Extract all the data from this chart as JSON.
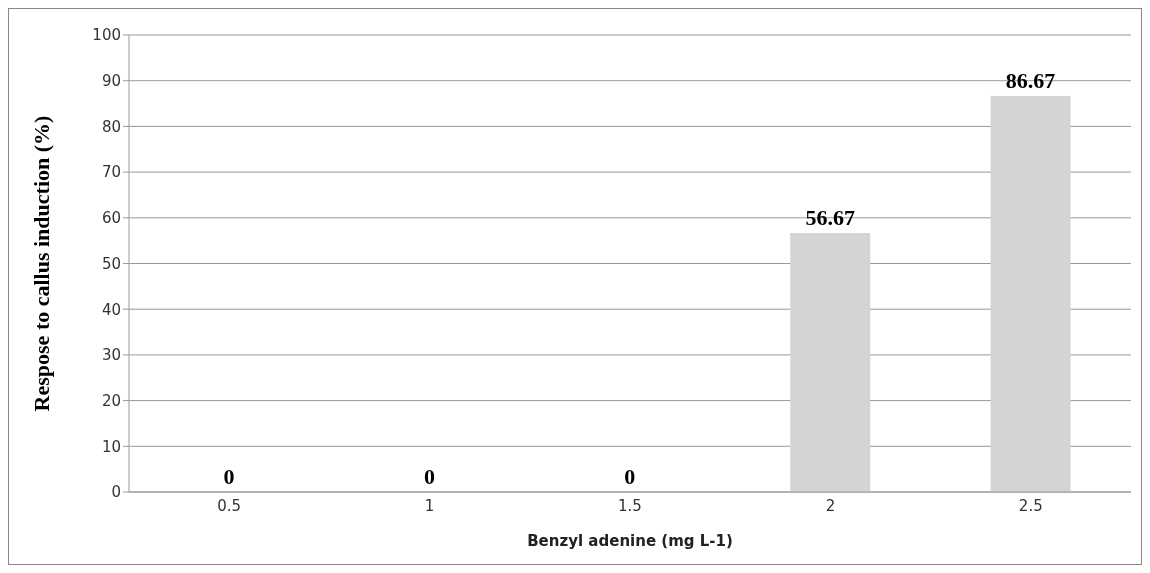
{
  "chart_data": {
    "type": "bar",
    "xlabel": "Benzyl adenine (mg L-1)",
    "ylabel": "Respose to callus induction (%)",
    "categories": [
      "0.5",
      "1",
      "1.5",
      "2",
      "2.5"
    ],
    "values": [
      0,
      0,
      0,
      56.67,
      86.67
    ],
    "color": "#d4d4d4",
    "ylim": [
      0,
      100
    ],
    "yticks": [
      0,
      10,
      20,
      30,
      40,
      50,
      60,
      70,
      80,
      90,
      100
    ],
    "grid": "y",
    "data_labels": true,
    "legend": false
  }
}
